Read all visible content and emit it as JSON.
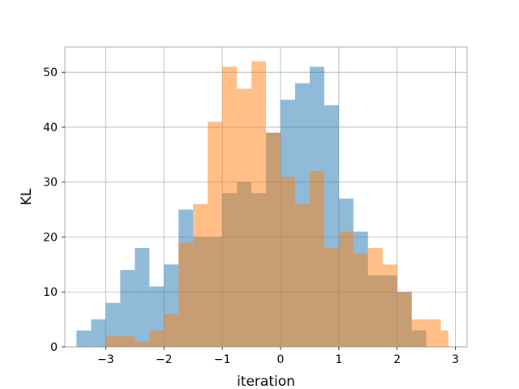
{
  "chart_data": {
    "type": "bar",
    "subtype": "overlaid-histogram",
    "title": "",
    "xlabel": "iteration",
    "ylabel": "KL",
    "xlim": [
      -3.7,
      3.2
    ],
    "ylim": [
      0,
      54.6
    ],
    "grid": true,
    "legend": "none",
    "xticks": [
      -3,
      -2,
      -1,
      0,
      1,
      2,
      3
    ],
    "xtick_labels": [
      "−3",
      "−2",
      "−1",
      "0",
      "1",
      "2",
      "3"
    ],
    "yticks": [
      0,
      10,
      20,
      30,
      40,
      50
    ],
    "ytick_labels": [
      "0",
      "10",
      "20",
      "30",
      "40",
      "50"
    ],
    "series": [
      {
        "color": "#1f77b4",
        "alpha": 0.5,
        "bins": [
          -3.5,
          -3.25,
          -3.0,
          -2.75,
          -2.5,
          -2.25,
          -2.0,
          -1.75,
          -1.5,
          -1.25,
          -1.0,
          -0.75,
          -0.5,
          -0.25,
          0.0,
          0.25,
          0.5,
          0.75,
          1.0,
          1.25,
          1.5,
          1.75,
          2.0,
          2.25,
          2.5,
          2.75
        ],
        "counts": [
          3,
          5,
          8,
          14,
          18,
          11,
          15,
          25,
          20,
          20,
          28,
          30,
          28,
          39,
          45,
          48,
          51,
          44,
          27,
          21,
          13,
          13,
          10,
          3,
          0,
          2
        ]
      },
      {
        "color": "#ff7f0e",
        "alpha": 0.5,
        "bins": [
          -3.0,
          -2.75,
          -2.5,
          -2.25,
          -2.0,
          -1.75,
          -1.5,
          -1.25,
          -1.0,
          -0.75,
          -0.5,
          -0.25,
          0.0,
          0.25,
          0.5,
          0.75,
          1.0,
          1.25,
          1.5,
          1.75,
          2.0,
          2.25,
          2.5,
          2.75,
          2.88
        ],
        "counts": [
          2,
          2,
          1,
          3,
          6,
          19,
          26,
          41,
          51,
          47,
          52,
          39,
          31,
          26,
          32,
          18,
          21,
          17,
          18,
          15,
          10,
          5,
          5,
          3
        ]
      }
    ]
  }
}
